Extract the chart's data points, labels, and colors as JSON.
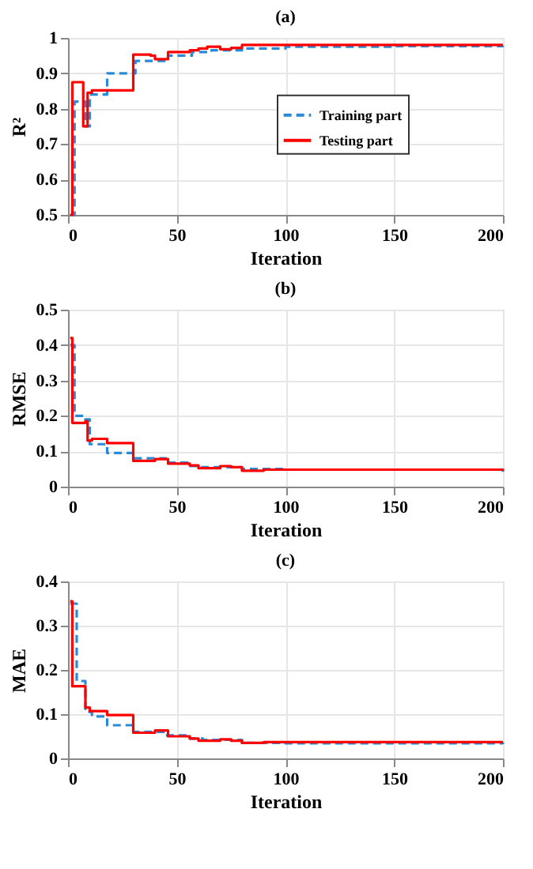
{
  "chart_data": [
    {
      "type": "step",
      "title": "(a)",
      "xlabel": "Iteration",
      "ylabel": "R²",
      "xlim": [
        0,
        200
      ],
      "xticks": [
        0,
        50,
        100,
        150,
        200
      ],
      "ylim": [
        0.5,
        1
      ],
      "yticks": [
        0.5,
        0.6,
        0.7,
        0.8,
        0.9,
        1
      ],
      "grid": true,
      "legend": "right",
      "series": [
        {
          "name": "Training part",
          "color": "#2b8ad6",
          "line_style": "dashed",
          "x": [
            1,
            3,
            8,
            10,
            18,
            31,
            46,
            57,
            66,
            80,
            100,
            150,
            200
          ],
          "values": [
            0.5,
            0.82,
            0.75,
            0.84,
            0.9,
            0.935,
            0.95,
            0.96,
            0.965,
            0.97,
            0.975,
            0.977,
            0.978
          ]
        },
        {
          "name": "Testing part",
          "color": "#ff0000",
          "line_style": "solid",
          "x": [
            1,
            2,
            7,
            9,
            11,
            30,
            38,
            40,
            46,
            56,
            60,
            64,
            70,
            75,
            80,
            200
          ],
          "values": [
            0.5,
            0.875,
            0.75,
            0.845,
            0.852,
            0.953,
            0.95,
            0.94,
            0.96,
            0.965,
            0.97,
            0.975,
            0.968,
            0.972,
            0.98,
            0.98
          ]
        }
      ]
    },
    {
      "type": "step",
      "title": "(b)",
      "xlabel": "Iteration",
      "ylabel": "RMSE",
      "xlim": [
        0,
        200
      ],
      "xticks": [
        0,
        50,
        100,
        150,
        200
      ],
      "ylim": [
        0,
        0.5
      ],
      "yticks": [
        0,
        0.1,
        0.2,
        0.3,
        0.4,
        0.5
      ],
      "grid": true,
      "legend": "right",
      "series": [
        {
          "name": "Training part",
          "color": "#2b8ad6",
          "line_style": "dashed",
          "x": [
            1,
            3,
            8,
            10,
            18,
            30,
            45,
            55,
            60,
            80,
            100,
            200
          ],
          "values": [
            0.4,
            0.2,
            0.19,
            0.12,
            0.095,
            0.08,
            0.068,
            0.058,
            0.055,
            0.05,
            0.048,
            0.042
          ]
        },
        {
          "name": "Testing part",
          "color": "#ff0000",
          "line_style": "solid",
          "x": [
            1,
            2,
            8,
            9,
            11,
            18,
            30,
            40,
            46,
            56,
            60,
            70,
            75,
            80,
            90,
            200
          ],
          "values": [
            0.42,
            0.18,
            0.185,
            0.13,
            0.135,
            0.123,
            0.073,
            0.078,
            0.065,
            0.06,
            0.052,
            0.058,
            0.055,
            0.045,
            0.048,
            0.046
          ]
        }
      ]
    },
    {
      "type": "step",
      "title": "(c)",
      "xlabel": "Iteration",
      "ylabel": "MAE",
      "xlim": [
        0,
        200
      ],
      "xticks": [
        0,
        50,
        100,
        150,
        200
      ],
      "ylim": [
        0,
        0.4
      ],
      "yticks": [
        0,
        0.1,
        0.2,
        0.3,
        0.4
      ],
      "grid": true,
      "legend": "right",
      "series": [
        {
          "name": "Training part",
          "color": "#2b8ad6",
          "line_style": "dashed",
          "x": [
            1,
            4,
            8,
            11,
            18,
            30,
            45,
            56,
            62,
            80,
            100,
            200
          ],
          "values": [
            0.35,
            0.175,
            0.105,
            0.095,
            0.075,
            0.06,
            0.052,
            0.045,
            0.042,
            0.035,
            0.034,
            0.032
          ]
        },
        {
          "name": "Testing part",
          "color": "#ff0000",
          "line_style": "solid",
          "x": [
            1,
            2,
            8,
            10,
            18,
            30,
            40,
            46,
            56,
            60,
            70,
            75,
            80,
            90,
            200
          ],
          "values": [
            0.355,
            0.163,
            0.115,
            0.107,
            0.098,
            0.058,
            0.063,
            0.05,
            0.045,
            0.04,
            0.043,
            0.04,
            0.035,
            0.037,
            0.037
          ]
        }
      ]
    }
  ]
}
